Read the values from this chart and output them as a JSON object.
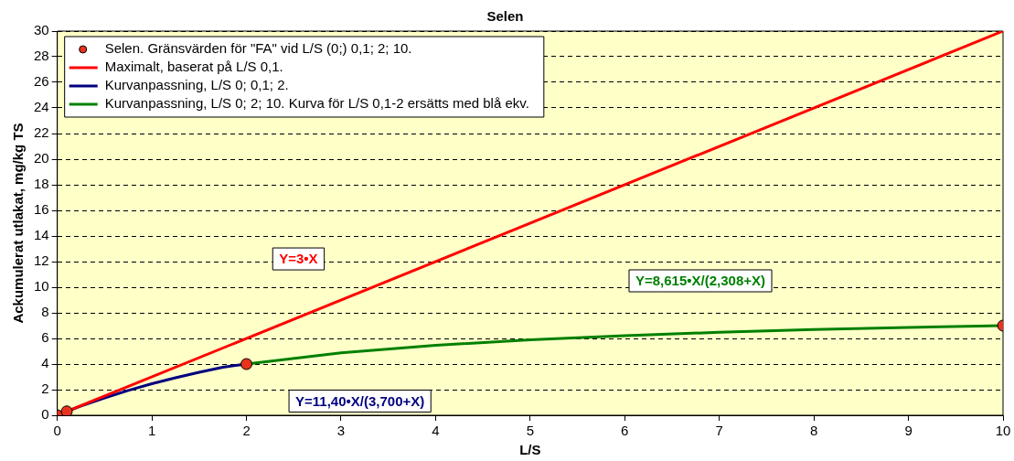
{
  "chart_data": {
    "type": "line",
    "title": "Selen",
    "xlabel": "L/S",
    "ylabel": "Ackumulerat utlakat, mg/kg TS",
    "xlim": [
      0,
      10
    ],
    "xticks": [
      0,
      1,
      2,
      3,
      4,
      5,
      6,
      7,
      8,
      9,
      10
    ],
    "ylim": [
      0,
      30
    ],
    "yticks": [
      0,
      2,
      4,
      6,
      8,
      10,
      12,
      14,
      16,
      18,
      20,
      22,
      24,
      26,
      28,
      30
    ],
    "grid": "y",
    "legend": "top left",
    "line_style": "solid",
    "series": [
      {
        "name": "Selen. Gränsvärden för \"FA\" vid L/S (0;) 0,1; 2; 10.",
        "type": "scatter",
        "marker": "circle",
        "color": "#e8341c",
        "x": [
          0,
          0.1,
          2,
          10
        ],
        "values": [
          0,
          0.3,
          4,
          7
        ]
      },
      {
        "name": "Maximalt, baserat på L/S 0,1.",
        "color": "#ff0000",
        "x": [
          0,
          10
        ],
        "values": [
          0,
          30
        ]
      },
      {
        "name": "Kurvanpassning, L/S 0; 0,1; 2.",
        "color": "#000080",
        "x": [
          0,
          0.1,
          0.25,
          0.5,
          0.75,
          1,
          1.25,
          1.5,
          1.75,
          2
        ],
        "values": [
          0,
          0.3,
          0.72,
          1.36,
          1.94,
          2.46,
          2.93,
          3.36,
          3.75,
          4.0
        ]
      },
      {
        "name": "Kurvanpassning, L/S 0; 2; 10. Kurva för L/S 0,1-2 ersätts med blå ekv.",
        "color": "#008000",
        "x": [
          2,
          3,
          4,
          5,
          6,
          7,
          8,
          9,
          10
        ],
        "values": [
          4.0,
          4.87,
          5.46,
          5.89,
          6.22,
          6.48,
          6.69,
          6.86,
          7.0
        ]
      }
    ],
    "annotations": [
      "Y=3•X",
      "Y=11,40•X/(3,700+X)",
      "Y=8,615•X/(2,308+X)"
    ]
  }
}
